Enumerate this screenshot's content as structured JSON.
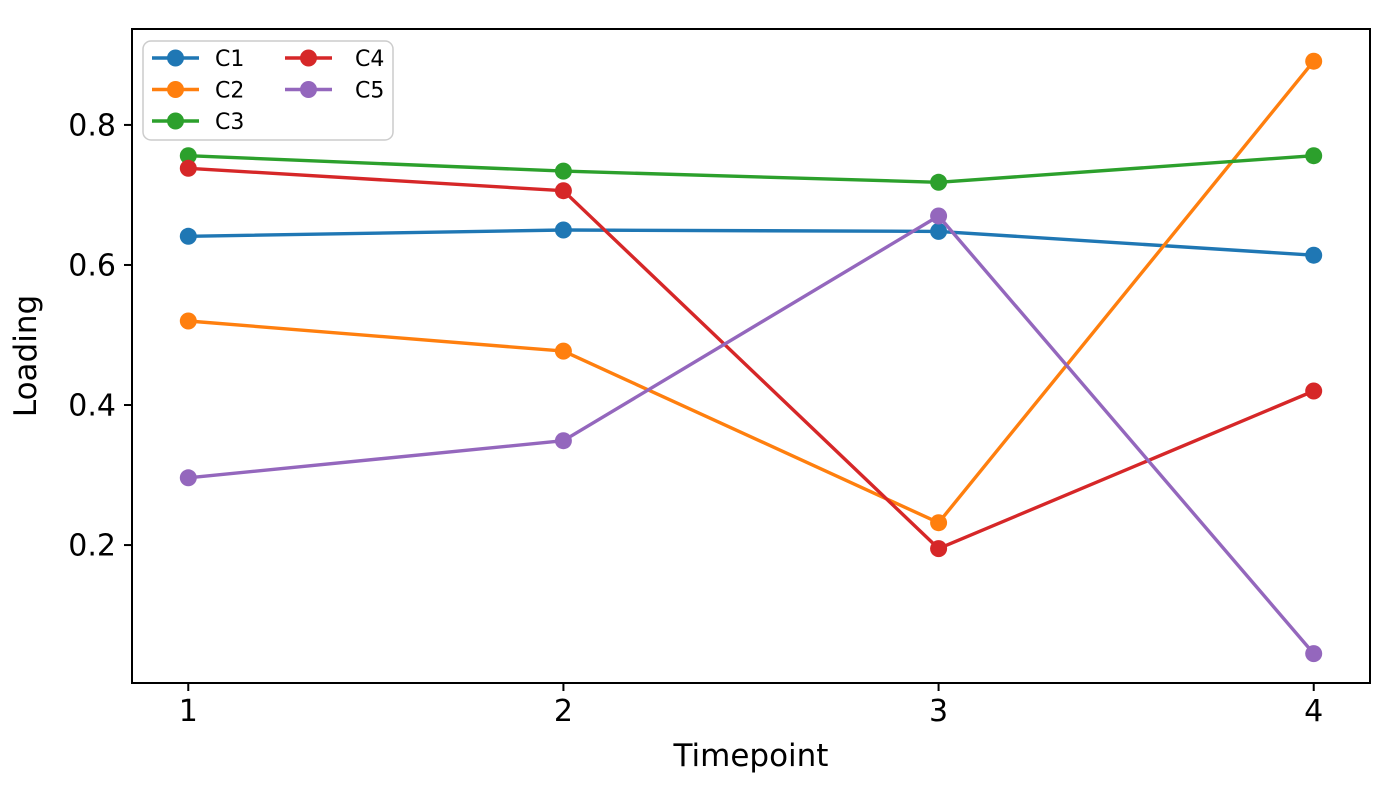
{
  "figure": {
    "background": "#ffffff",
    "spine_color": "#000000"
  },
  "chart_data": {
    "type": "line",
    "title": "",
    "xlabel": "Timepoint",
    "ylabel": "Loading",
    "x": [
      1,
      2,
      3,
      4
    ],
    "x_tick_labels": [
      "1",
      "2",
      "3",
      "4"
    ],
    "y_ticks": [
      0.2,
      0.4,
      0.6,
      0.8
    ],
    "y_tick_labels": [
      "0.2",
      "0.4",
      "0.6",
      "0.8"
    ],
    "xlim": [
      0.85,
      4.15
    ],
    "ylim": [
      0.003,
      0.937
    ],
    "grid": false,
    "marker": "circle",
    "series": [
      {
        "name": "C1",
        "color": "#1f77b4",
        "values": [
          0.641,
          0.65,
          0.648,
          0.614
        ]
      },
      {
        "name": "C2",
        "color": "#ff7f0e",
        "values": [
          0.52,
          0.477,
          0.232,
          0.891
        ]
      },
      {
        "name": "C3",
        "color": "#2ca02c",
        "values": [
          0.756,
          0.734,
          0.718,
          0.756
        ]
      },
      {
        "name": "C4",
        "color": "#d62728",
        "values": [
          0.738,
          0.706,
          0.195,
          0.42
        ]
      },
      {
        "name": "C5",
        "color": "#9467bd",
        "values": [
          0.296,
          0.349,
          0.67,
          0.045
        ]
      }
    ],
    "legend": {
      "position": "upper left",
      "columns": 2,
      "entries": [
        "C1",
        "C2",
        "C3",
        "C4",
        "C5"
      ],
      "border_color": "#cccccc",
      "background": "#ffffff"
    }
  }
}
